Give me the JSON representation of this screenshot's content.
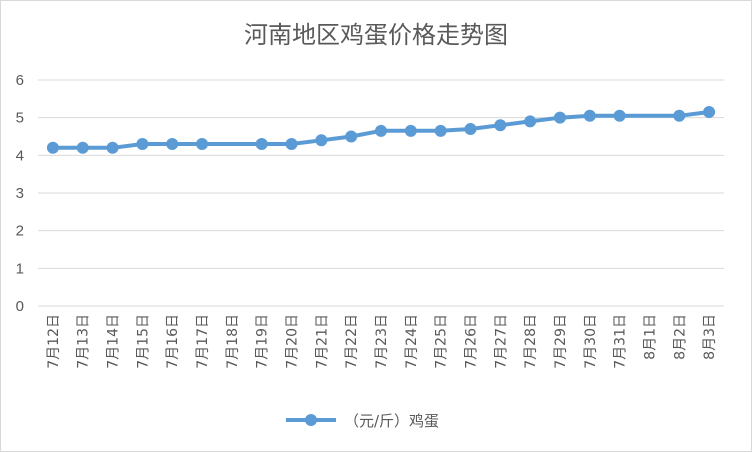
{
  "chart_data": {
    "type": "line",
    "title": "河南地区鸡蛋价格走势图",
    "xlabel": "",
    "ylabel": "",
    "ylim": [
      0,
      6
    ],
    "yticks": [
      "0",
      "1",
      "2",
      "3",
      "4",
      "5",
      "6"
    ],
    "grid": true,
    "legend_position": "bottom",
    "categories": [
      "7月12日",
      "7月13日",
      "7月14日",
      "7月15日",
      "7月16日",
      "7月17日",
      "7月18日",
      "7月19日",
      "7月20日",
      "7月21日",
      "7月22日",
      "7月23日",
      "7月24日",
      "7月25日",
      "7月26日",
      "7月27日",
      "7月28日",
      "7月29日",
      "7月30日",
      "7月31日",
      "8月1日",
      "8月2日",
      "8月3日"
    ],
    "series": [
      {
        "name": "（元/斤）鸡蛋",
        "color": "#5b9bd5",
        "values": [
          4.2,
          4.2,
          4.2,
          4.3,
          4.3,
          4.3,
          null,
          4.3,
          4.3,
          4.4,
          4.5,
          4.65,
          4.65,
          4.65,
          4.7,
          4.8,
          4.9,
          5.0,
          5.05,
          5.05,
          null,
          5.05,
          5.15
        ]
      }
    ]
  }
}
